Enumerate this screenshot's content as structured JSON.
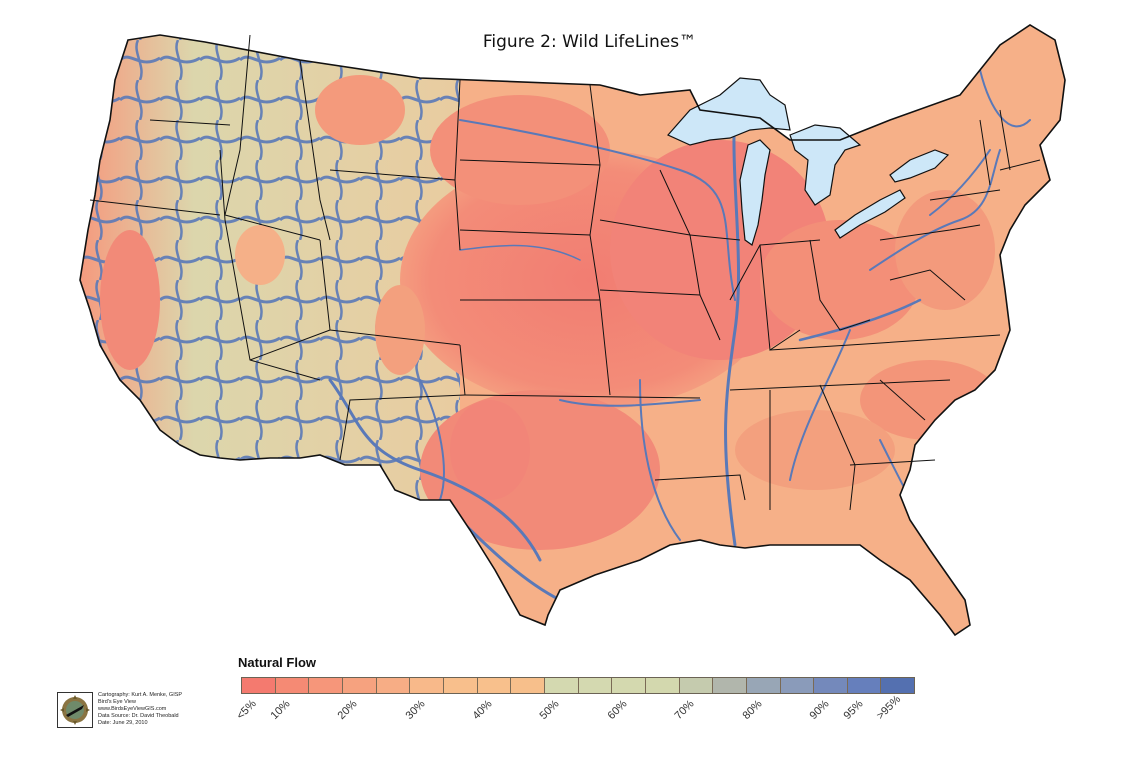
{
  "figure": {
    "title": "Figure 2: Wild LifeLines™"
  },
  "map": {
    "subject": "Contiguous United States natural flow / wildlife corridor connectivity",
    "colors": {
      "land_low": "#f28a78",
      "land_mid": "#f7c08e",
      "land_high": "#d3d9b0",
      "rivers": "#5a79b8",
      "great_lakes": "#cde7f8",
      "borders": "#111111",
      "background": "#ffffff"
    },
    "water_bodies": [
      "Lake Superior",
      "Lake Michigan",
      "Lake Huron",
      "Lake Erie",
      "Lake Ontario"
    ]
  },
  "legend": {
    "title": "Natural Flow",
    "swatches": [
      {
        "color": "#f47a6f"
      },
      {
        "color": "#f58a74"
      },
      {
        "color": "#f6967a"
      },
      {
        "color": "#f6a27f"
      },
      {
        "color": "#f7ad85"
      },
      {
        "color": "#f8b98a"
      },
      {
        "color": "#f8bf8c"
      },
      {
        "color": "#f8c08c"
      },
      {
        "color": "#f7bf8b"
      },
      {
        "color": "#d4d9b0"
      },
      {
        "color": "#d4d9b0"
      },
      {
        "color": "#d4d9af"
      },
      {
        "color": "#d3d8ae"
      },
      {
        "color": "#c5cbae"
      },
      {
        "color": "#b1b6ac"
      },
      {
        "color": "#98a6b6"
      },
      {
        "color": "#8a9bba"
      },
      {
        "color": "#7489bb"
      },
      {
        "color": "#667fbc"
      },
      {
        "color": "#5470b0"
      }
    ],
    "labels": [
      {
        "text": "<5%",
        "index": 0
      },
      {
        "text": "10%",
        "index": 1
      },
      {
        "text": "20%",
        "index": 3
      },
      {
        "text": "30%",
        "index": 5
      },
      {
        "text": "40%",
        "index": 7
      },
      {
        "text": "50%",
        "index": 9
      },
      {
        "text": "60%",
        "index": 11
      },
      {
        "text": "70%",
        "index": 13
      },
      {
        "text": "80%",
        "index": 15
      },
      {
        "text": "90%",
        "index": 17
      },
      {
        "text": "95%",
        "index": 18
      },
      {
        "text": ">95%",
        "index": 19
      }
    ]
  },
  "credits": {
    "lines": [
      "Cartography: Kurt A. Menke, GISP",
      "Bird's Eye View",
      "www.BirdsEyeViewGIS.com",
      "Data Source: Dr. David Theobald",
      "Date: June 29, 2010"
    ]
  }
}
